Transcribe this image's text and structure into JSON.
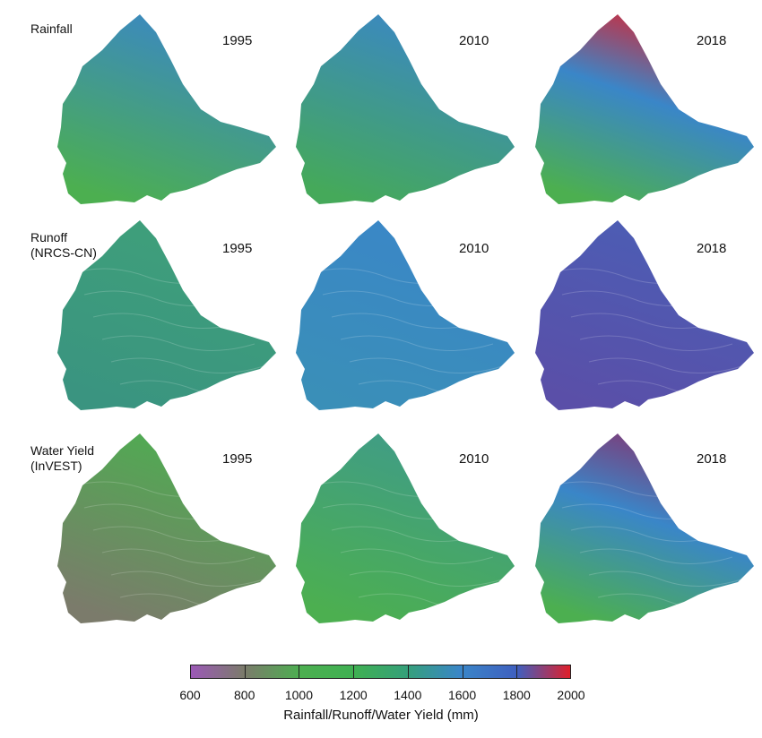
{
  "rows": [
    {
      "label_line1": "Rainfall",
      "label_line2": ""
    },
    {
      "label_line1": "Runoff",
      "label_line2": "(NRCS-CN)"
    },
    {
      "label_line1": "Water Yield",
      "label_line2": "(InVEST)"
    }
  ],
  "years": [
    "1995",
    "2010",
    "2018"
  ],
  "legend": {
    "ticks": [
      "600",
      "800",
      "1000",
      "1200",
      "1400",
      "1600",
      "1800",
      "2000"
    ],
    "title": "Rainfall/Runoff/Water Yield (mm)",
    "min": 600,
    "max": 2000,
    "colors": {
      "600": "#9b59b6",
      "800": "#7b7b6b",
      "1000": "#4caf50",
      "1200": "#3fb052",
      "1400": "#35a07a",
      "1600": "#3a86c8",
      "1800": "#3f5fbf",
      "2000": "#e01f2a"
    }
  },
  "panel_colors": {
    "rainfall_1995": {
      "top": "#3a86c8",
      "bottom": "#4caf50"
    },
    "rainfall_2010": {
      "top": "#3a86c8",
      "bottom": "#45a95a"
    },
    "rainfall_2018": {
      "top": "#e01f2a",
      "mid": "#3a86c8",
      "bottom": "#4caf50"
    },
    "runoff_1995": {
      "top": "#3fa07a",
      "bottom": "#3a9480"
    },
    "runoff_2010": {
      "top": "#3a86c8",
      "bottom": "#3a8fb8"
    },
    "runoff_2018": {
      "top": "#4b5eb5",
      "bottom": "#5a4fa8"
    },
    "wateryield_1995": {
      "top": "#4caf50",
      "bottom": "#7b7b6b"
    },
    "wateryield_2010": {
      "top": "#3f9b8a",
      "bottom": "#4caf50"
    },
    "wateryield_2018": {
      "top": "#8a2f6b",
      "mid": "#3a86c8",
      "bottom": "#4caf50"
    }
  }
}
